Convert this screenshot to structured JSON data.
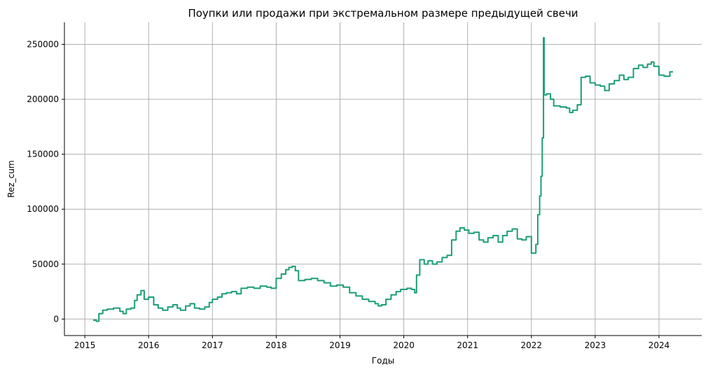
{
  "chart_data": {
    "type": "line",
    "title": "Поупки или продажи при экстремальном размере предыдущей свечи",
    "xlabel": "Годы",
    "ylabel": "Rez_cum",
    "xlim": [
      2014.68,
      2024.67
    ],
    "ylim": [
      -15000,
      270000
    ],
    "x_ticks": [
      "2015",
      "2016",
      "2017",
      "2018",
      "2019",
      "2020",
      "2021",
      "2022",
      "2023",
      "2024"
    ],
    "y_ticks": [
      "0",
      "50000",
      "100000",
      "150000",
      "200000",
      "250000"
    ],
    "grid": true,
    "line_color": "#1b9e77",
    "series": [
      {
        "x": [
          2015.13,
          2015.18,
          2015.22,
          2015.28,
          2015.35,
          2015.45,
          2015.55,
          2015.6,
          2015.65,
          2015.72,
          2015.78,
          2015.82,
          2015.88,
          2015.93,
          2016.0,
          2016.08,
          2016.15,
          2016.22,
          2016.3,
          2016.38,
          2016.45,
          2016.5,
          2016.58,
          2016.65,
          2016.72,
          2016.8,
          2016.88,
          2016.95,
          2017.0,
          2017.08,
          2017.15,
          2017.22,
          2017.3,
          2017.38,
          2017.45,
          2017.55,
          2017.65,
          2017.75,
          2017.85,
          2017.92,
          2018.0,
          2018.08,
          2018.15,
          2018.2,
          2018.25,
          2018.3,
          2018.35,
          2018.45,
          2018.55,
          2018.65,
          2018.75,
          2018.85,
          2018.95,
          2019.05,
          2019.15,
          2019.25,
          2019.35,
          2019.45,
          2019.55,
          2019.6,
          2019.65,
          2019.72,
          2019.8,
          2019.88,
          2019.95,
          2020.05,
          2020.12,
          2020.17,
          2020.2,
          2020.25,
          2020.32,
          2020.38,
          2020.45,
          2020.52,
          2020.6,
          2020.68,
          2020.75,
          2020.82,
          2020.88,
          2020.95,
          2021.02,
          2021.1,
          2021.18,
          2021.25,
          2021.32,
          2021.4,
          2021.48,
          2021.55,
          2021.62,
          2021.7,
          2021.78,
          2021.85,
          2021.92,
          2022.0,
          2022.04,
          2022.07,
          2022.1,
          2022.13,
          2022.15,
          2022.17,
          2022.19,
          2022.2,
          2022.24,
          2022.3,
          2022.35,
          2022.45,
          2022.55,
          2022.6,
          2022.65,
          2022.72,
          2022.78,
          2022.85,
          2022.92,
          2023.0,
          2023.08,
          2023.15,
          2023.22,
          2023.3,
          2023.38,
          2023.45,
          2023.52,
          2023.6,
          2023.68,
          2023.75,
          2023.82,
          2023.88,
          2023.92,
          2024.0,
          2024.08,
          2024.12,
          2024.17,
          2024.22
        ],
        "y": [
          -1000,
          -2000,
          5000,
          8000,
          9000,
          10000,
          7000,
          5000,
          9000,
          10000,
          17000,
          22000,
          26000,
          18000,
          20000,
          13000,
          10000,
          8000,
          11000,
          13000,
          10000,
          8000,
          12000,
          14000,
          10000,
          9000,
          11000,
          15000,
          18000,
          20000,
          23000,
          24000,
          25000,
          23000,
          28000,
          29000,
          28000,
          30000,
          29000,
          28000,
          37000,
          41000,
          45000,
          47000,
          48000,
          44000,
          35000,
          36000,
          37000,
          35000,
          33000,
          30000,
          31000,
          29000,
          24000,
          21000,
          18000,
          16000,
          14000,
          12000,
          13000,
          18000,
          22000,
          25000,
          27000,
          28000,
          27000,
          24000,
          40000,
          54000,
          50000,
          53000,
          50000,
          52000,
          56000,
          58000,
          72000,
          80000,
          83000,
          81000,
          78000,
          79000,
          72000,
          70000,
          74000,
          76000,
          70000,
          76000,
          80000,
          82000,
          73000,
          72000,
          75000,
          60000,
          60000,
          68000,
          95000,
          112000,
          130000,
          165000,
          256000,
          204000,
          205000,
          200000,
          194000,
          193000,
          192000,
          188000,
          190000,
          195000,
          220000,
          221000,
          215000,
          213000,
          212000,
          208000,
          214000,
          217000,
          222000,
          218000,
          220000,
          228000,
          231000,
          229000,
          232000,
          234000,
          230000,
          222000,
          221000,
          221000,
          225000,
          225000
        ]
      }
    ]
  }
}
